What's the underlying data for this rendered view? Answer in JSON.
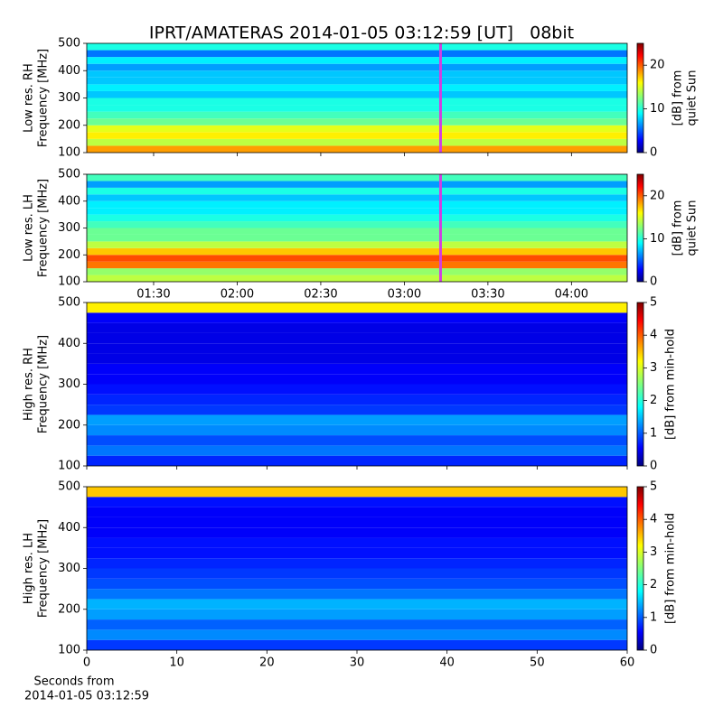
{
  "title": "IPRT/AMATERAS 2014-01-05 03:12:59 [UT]   08bit",
  "chart_data": [
    {
      "type": "heatmap",
      "ylabel": [
        "Low res. RH",
        "Frequency [MHz]"
      ],
      "colorbar_label": [
        "[dB] from",
        "quiet Sun"
      ],
      "xlim": [
        66,
        260
      ],
      "xticks": [
        90,
        120,
        150,
        180,
        210,
        240
      ],
      "xtick_labels": false,
      "ylim": [
        100,
        500
      ],
      "yticks": [
        100,
        200,
        300,
        400,
        500
      ],
      "clim": [
        0,
        25
      ],
      "cticks": [
        0,
        10,
        20
      ],
      "cursor": 193,
      "y_bins": [
        100,
        125,
        150,
        175,
        200,
        225,
        250,
        275,
        300,
        325,
        350,
        375,
        400,
        425,
        450,
        475,
        500
      ],
      "values": [
        18,
        14,
        16,
        15,
        12,
        11,
        10,
        10,
        8,
        9,
        8,
        8,
        7,
        9,
        6,
        10
      ]
    },
    {
      "type": "heatmap",
      "ylabel": [
        "Low res. LH",
        "Frequency [MHz]"
      ],
      "colorbar_label": [
        "[dB] from",
        "quiet Sun"
      ],
      "xlim": [
        66,
        260
      ],
      "xticks": [
        {
          "value": 90,
          "label": "01:30"
        },
        {
          "value": 120,
          "label": "02:00"
        },
        {
          "value": 150,
          "label": "02:30"
        },
        {
          "value": 180,
          "label": "03:00"
        },
        {
          "value": 210,
          "label": "03:30"
        },
        {
          "value": 240,
          "label": "04:00"
        }
      ],
      "xtick_labels": true,
      "ylim": [
        100,
        500
      ],
      "yticks": [
        100,
        200,
        300,
        400,
        500
      ],
      "clim": [
        0,
        25
      ],
      "cticks": [
        0,
        10,
        20
      ],
      "cursor": 193,
      "y_bins": [
        100,
        125,
        150,
        175,
        200,
        225,
        250,
        275,
        300,
        325,
        350,
        375,
        400,
        425,
        450,
        475,
        500
      ],
      "values": [
        14,
        13,
        19,
        20,
        17,
        14,
        12,
        12,
        11,
        10,
        9,
        9,
        8,
        10,
        7,
        11
      ]
    },
    {
      "type": "heatmap",
      "ylabel": [
        "High res. RH",
        "Frequency [MHz]"
      ],
      "colorbar_label": [
        "[dB] from min-hold"
      ],
      "xlim": [
        0,
        60
      ],
      "xticks": [
        0,
        10,
        20,
        30,
        40,
        50,
        60
      ],
      "xtick_labels": false,
      "ylim": [
        100,
        500
      ],
      "yticks": [
        100,
        200,
        300,
        400,
        500
      ],
      "clim": [
        0,
        5
      ],
      "cticks": [
        0,
        1,
        2,
        3,
        4,
        5
      ],
      "y_bins": [
        100,
        125,
        150,
        175,
        200,
        225,
        250,
        275,
        300,
        325,
        350,
        375,
        400,
        425,
        450,
        475,
        500
      ],
      "values": [
        0.8,
        1.2,
        1.0,
        1.3,
        1.4,
        0.9,
        0.8,
        0.7,
        0.6,
        0.6,
        0.5,
        0.5,
        0.5,
        0.5,
        0.6,
        3.2
      ]
    },
    {
      "type": "heatmap",
      "ylabel": [
        "High res. LH",
        "Frequency [MHz]"
      ],
      "colorbar_label": [
        "[dB] from min-hold"
      ],
      "xlim": [
        0,
        60
      ],
      "xticks": [
        0,
        10,
        20,
        30,
        40,
        50,
        60
      ],
      "xtick_labels": true,
      "xlabel": [
        "Seconds from",
        "2014-01-05 03:12:59"
      ],
      "ylim": [
        100,
        500
      ],
      "yticks": [
        100,
        200,
        300,
        400,
        500
      ],
      "clim": [
        0,
        5
      ],
      "cticks": [
        0,
        1,
        2,
        3,
        4,
        5
      ],
      "y_bins": [
        100,
        125,
        150,
        175,
        200,
        225,
        250,
        275,
        300,
        325,
        350,
        375,
        400,
        425,
        450,
        475,
        500
      ],
      "values": [
        0.9,
        1.3,
        1.1,
        1.4,
        1.5,
        1.2,
        1.0,
        0.9,
        0.8,
        0.7,
        0.7,
        0.6,
        0.6,
        0.6,
        0.7,
        3.4
      ]
    }
  ]
}
